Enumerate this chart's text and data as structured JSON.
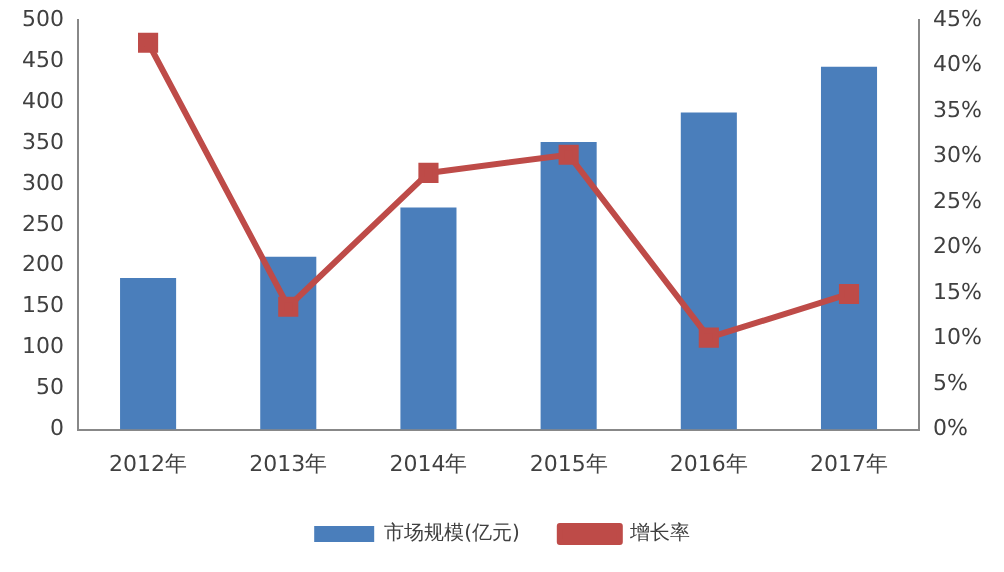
{
  "chart_data": {
    "type": "bar",
    "categories": [
      "2012年",
      "2013年",
      "2014年",
      "2015年",
      "2016年",
      "2017年"
    ],
    "series": [
      {
        "name": "市场规模(亿元)",
        "color": "#4a7ebb",
        "values": [
          185,
          211,
          271,
          351,
          387,
          443
        ]
      },
      {
        "name": "增长率",
        "type": "line",
        "axis": "y2",
        "color": "#be4b48",
        "marker": "square",
        "values": [
          42.5,
          13.5,
          28.2,
          30.2,
          10.1,
          14.9
        ]
      }
    ],
    "ylim": [
      0,
      500
    ],
    "yticks": [
      0,
      50,
      100,
      150,
      200,
      250,
      300,
      350,
      400,
      450,
      500
    ],
    "y2lim": [
      0,
      45
    ],
    "y2ticks": [
      {
        "value": 0,
        "label": "0%"
      },
      {
        "value": 5,
        "label": "5%"
      },
      {
        "value": 10,
        "label": "10%"
      },
      {
        "value": 15,
        "label": "15%"
      },
      {
        "value": 20,
        "label": "20%"
      },
      {
        "value": 25,
        "label": "25%"
      },
      {
        "value": 30,
        "label": "30%"
      },
      {
        "value": 35,
        "label": "35%"
      },
      {
        "value": 40,
        "label": "40%"
      },
      {
        "value": 45,
        "label": "45%"
      }
    ],
    "grid": false,
    "legend": "bottom"
  }
}
